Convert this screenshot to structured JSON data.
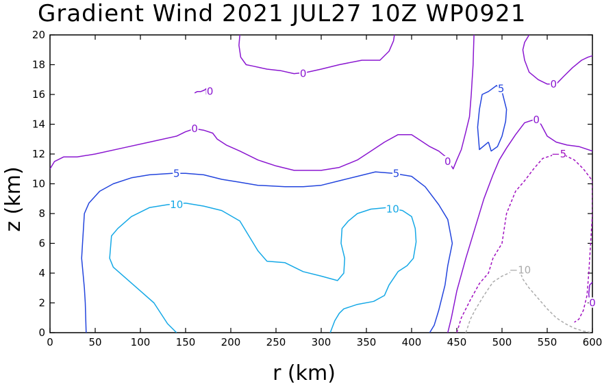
{
  "chart_data": {
    "type": "contour",
    "title": "Gradient Wind 2021 JUL27 10Z  WP0921",
    "xlabel": "r (km)",
    "ylabel": "z (km)",
    "xlim": [
      0,
      600
    ],
    "ylim": [
      0,
      20
    ],
    "xticks": [
      "0",
      "50",
      "100",
      "150",
      "200",
      "250",
      "300",
      "350",
      "400",
      "450",
      "500",
      "550",
      "600"
    ],
    "yticks": [
      "0",
      "2",
      "4",
      "6",
      "8",
      "10",
      "12",
      "14",
      "16",
      "18",
      "20"
    ],
    "grid": false,
    "colors": {
      "c0": "#8a16d0",
      "c5": "#2244dd",
      "c10": "#14a8e6",
      "cneg5": "#a010c0",
      "cneg10": "#aaaaaa"
    },
    "contours": [
      {
        "id": "c0-top",
        "level": "0",
        "color": "c0",
        "dashed": false,
        "points": [
          [
            210,
            20
          ],
          [
            209,
            19.3
          ],
          [
            211,
            18.5
          ],
          [
            217,
            18
          ],
          [
            225,
            17.9
          ],
          [
            240,
            17.7
          ],
          [
            255,
            17.6
          ],
          [
            270,
            17.4
          ],
          [
            285,
            17.5
          ],
          [
            300,
            17.7
          ],
          [
            320,
            18
          ],
          [
            345,
            18.3
          ],
          [
            365,
            18.3
          ],
          [
            375,
            18.9
          ],
          [
            380,
            19.6
          ],
          [
            381,
            20
          ]
        ]
      },
      {
        "id": "c0-main",
        "level": "0",
        "color": "c0",
        "dashed": false,
        "points": [
          [
            0,
            11
          ],
          [
            5,
            11.5
          ],
          [
            15,
            11.8
          ],
          [
            30,
            11.8
          ],
          [
            50,
            12
          ],
          [
            80,
            12.4
          ],
          [
            110,
            12.8
          ],
          [
            140,
            13.2
          ],
          [
            150,
            13.5
          ],
          [
            160,
            13.7
          ],
          [
            170,
            13.6
          ],
          [
            180,
            13.4
          ],
          [
            185,
            13
          ],
          [
            195,
            12.6
          ],
          [
            210,
            12.2
          ],
          [
            230,
            11.6
          ],
          [
            250,
            11.2
          ],
          [
            270,
            10.9
          ],
          [
            300,
            10.9
          ],
          [
            320,
            11.1
          ],
          [
            340,
            11.6
          ],
          [
            355,
            12.2
          ],
          [
            370,
            12.8
          ],
          [
            385,
            13.3
          ],
          [
            400,
            13.3
          ],
          [
            410,
            12.9
          ],
          [
            420,
            12.5
          ],
          [
            430,
            12.2
          ],
          [
            438,
            11.8
          ],
          [
            443,
            11.3
          ],
          [
            446,
            11
          ],
          [
            450,
            11.6
          ],
          [
            455,
            12.3
          ],
          [
            460,
            13.5
          ],
          [
            464,
            14.5
          ],
          [
            466,
            16
          ],
          [
            467,
            17
          ],
          [
            468,
            18
          ],
          [
            468.5,
            19
          ],
          [
            469,
            20
          ]
        ]
      },
      {
        "id": "c0-topright",
        "level": "0",
        "color": "c0",
        "dashed": false,
        "points": [
          [
            530,
            20
          ],
          [
            525,
            19.5
          ],
          [
            523,
            19
          ],
          [
            525,
            18.3
          ],
          [
            530,
            17.5
          ],
          [
            540,
            17
          ],
          [
            550,
            16.7
          ],
          [
            560,
            16.7
          ],
          [
            568,
            17.2
          ],
          [
            578,
            17.8
          ],
          [
            588,
            18.3
          ],
          [
            595,
            18.5
          ],
          [
            600,
            18.6
          ]
        ]
      },
      {
        "id": "c0-small",
        "level": "0",
        "color": "c0",
        "dashed": false,
        "points": [
          [
            160,
            16.1
          ],
          [
            163,
            16.2
          ],
          [
            167,
            16.2
          ],
          [
            171,
            16.3
          ],
          [
            173,
            16.4
          ],
          [
            173,
            16
          ]
        ]
      },
      {
        "id": "c0-rightdesc",
        "level": "0",
        "color": "c0",
        "dashed": false,
        "points": [
          [
            440,
            0
          ],
          [
            444,
            1
          ],
          [
            450,
            2.8
          ],
          [
            460,
            5
          ],
          [
            470,
            7
          ],
          [
            480,
            9
          ],
          [
            490,
            10.6
          ],
          [
            497,
            11.6
          ],
          [
            505,
            12.4
          ],
          [
            515,
            13.3
          ],
          [
            525,
            14.1
          ],
          [
            535,
            14.3
          ],
          [
            543,
            14
          ],
          [
            550,
            13.2
          ],
          [
            560,
            12.8
          ],
          [
            572,
            12.6
          ],
          [
            585,
            12.5
          ],
          [
            600,
            12.2
          ]
        ]
      },
      {
        "id": "c0-edge",
        "level": "0",
        "color": "c0",
        "dashed": false,
        "points": [
          [
            600,
            3.4
          ],
          [
            597,
            3.2
          ],
          [
            596,
            2.6
          ],
          [
            597,
            2
          ]
        ]
      },
      {
        "id": "c5-main",
        "level": "5",
        "color": "c5",
        "dashed": false,
        "points": [
          [
            40,
            0
          ],
          [
            39,
            2
          ],
          [
            38,
            3
          ],
          [
            35,
            5
          ],
          [
            36,
            6
          ],
          [
            38,
            8
          ],
          [
            43,
            8.7
          ],
          [
            55,
            9.5
          ],
          [
            70,
            10
          ],
          [
            90,
            10.4
          ],
          [
            110,
            10.6
          ],
          [
            135,
            10.7
          ],
          [
            150,
            10.7
          ],
          [
            170,
            10.6
          ],
          [
            190,
            10.3
          ],
          [
            210,
            10.1
          ],
          [
            230,
            9.9
          ],
          [
            260,
            9.8
          ],
          [
            280,
            9.8
          ],
          [
            300,
            9.9
          ],
          [
            320,
            10.2
          ],
          [
            340,
            10.5
          ],
          [
            360,
            10.8
          ],
          [
            380,
            10.7
          ],
          [
            400,
            10.5
          ],
          [
            415,
            9.8
          ],
          [
            430,
            8.6
          ],
          [
            440,
            7.6
          ],
          [
            445,
            6
          ],
          [
            440,
            4.5
          ],
          [
            437,
            3.2
          ],
          [
            430,
            1.5
          ],
          [
            425,
            0.5
          ],
          [
            420,
            0
          ]
        ]
      },
      {
        "id": "c5-island",
        "level": "5",
        "color": "c5",
        "dashed": false,
        "points": [
          [
            485,
            12.8
          ],
          [
            475,
            12.3
          ],
          [
            473,
            13.8
          ],
          [
            475,
            15
          ],
          [
            478,
            16
          ],
          [
            485,
            16.2
          ],
          [
            494,
            16.6
          ],
          [
            500,
            16.2
          ],
          [
            505,
            15
          ],
          [
            504,
            14.2
          ],
          [
            500,
            13.2
          ],
          [
            495,
            12.5
          ],
          [
            488,
            12.2
          ],
          [
            485,
            12.8
          ]
        ]
      },
      {
        "id": "c10-main",
        "level": "10",
        "color": "c10",
        "dashed": false,
        "points": [
          [
            140,
            0
          ],
          [
            130,
            0.6
          ],
          [
            115,
            2
          ],
          [
            100,
            2.8
          ],
          [
            85,
            3.6
          ],
          [
            70,
            4.4
          ],
          [
            66,
            5
          ],
          [
            68,
            6.5
          ],
          [
            75,
            7
          ],
          [
            90,
            7.8
          ],
          [
            110,
            8.4
          ],
          [
            130,
            8.6
          ],
          [
            150,
            8.7
          ],
          [
            170,
            8.5
          ],
          [
            190,
            8.2
          ],
          [
            210,
            7.5
          ],
          [
            220,
            6.5
          ],
          [
            230,
            5.5
          ],
          [
            240,
            4.8
          ],
          [
            260,
            4.7
          ],
          [
            280,
            4.1
          ],
          [
            300,
            3.8
          ],
          [
            318,
            3.5
          ],
          [
            325,
            4
          ],
          [
            326,
            5
          ],
          [
            322,
            6
          ],
          [
            323,
            7
          ],
          [
            330,
            7.5
          ],
          [
            340,
            8
          ],
          [
            355,
            8.3
          ],
          [
            373,
            8.4
          ],
          [
            390,
            8.2
          ],
          [
            400,
            7.8
          ],
          [
            404,
            7
          ],
          [
            405,
            6.1
          ],
          [
            402,
            5
          ],
          [
            395,
            4.5
          ],
          [
            385,
            4.1
          ],
          [
            375,
            3.2
          ],
          [
            370,
            2.5
          ],
          [
            358,
            2.1
          ],
          [
            340,
            1.9
          ],
          [
            325,
            1.6
          ],
          [
            320,
            1.3
          ],
          [
            315,
            0.8
          ],
          [
            310,
            0
          ]
        ]
      },
      {
        "id": "cneg5",
        "level": "-5",
        "color": "cneg5",
        "dashed": true,
        "points": [
          [
            450,
            0
          ],
          [
            455,
            1
          ],
          [
            465,
            2.2
          ],
          [
            475,
            3.3
          ],
          [
            485,
            4
          ],
          [
            490,
            5
          ],
          [
            500,
            6
          ],
          [
            505,
            8
          ],
          [
            515,
            9.5
          ],
          [
            525,
            10.2
          ],
          [
            535,
            11
          ],
          [
            545,
            11.7
          ],
          [
            560,
            12
          ],
          [
            570,
            11.9
          ],
          [
            580,
            11.6
          ],
          [
            590,
            11
          ],
          [
            600,
            10.2
          ],
          [
            600,
            8
          ],
          [
            598,
            6
          ],
          [
            596,
            4
          ],
          [
            594,
            2.5
          ],
          [
            590,
            1.5
          ],
          [
            585,
            0.9
          ],
          [
            580,
            0.7
          ]
        ]
      },
      {
        "id": "cneg10",
        "level": "-10",
        "color": "cneg10",
        "dashed": true,
        "points": [
          [
            460,
            0
          ],
          [
            465,
            0.9
          ],
          [
            470,
            1.5
          ],
          [
            480,
            2.5
          ],
          [
            490,
            3.4
          ],
          [
            500,
            3.8
          ],
          [
            515,
            4.2
          ],
          [
            520,
            4.1
          ],
          [
            523,
            3.6
          ],
          [
            530,
            3
          ],
          [
            540,
            2.3
          ],
          [
            550,
            1.6
          ],
          [
            560,
            1
          ],
          [
            570,
            0.6
          ],
          [
            580,
            0.3
          ],
          [
            590,
            0.1
          ],
          [
            600,
            0
          ]
        ]
      }
    ],
    "contour_labels": [
      {
        "text": "0",
        "x": 280,
        "y": 17.4,
        "color": "c0"
      },
      {
        "text": "0",
        "x": 177,
        "y": 16.2,
        "color": "c0"
      },
      {
        "text": "0",
        "x": 160,
        "y": 13.7,
        "color": "c0"
      },
      {
        "text": "0",
        "x": 440,
        "y": 11.5,
        "color": "c0"
      },
      {
        "text": "0",
        "x": 557,
        "y": 16.7,
        "color": "c0"
      },
      {
        "text": "0",
        "x": 538,
        "y": 14.3,
        "color": "c0"
      },
      {
        "text": "0",
        "x": 600,
        "y": 2,
        "color": "c0"
      },
      {
        "text": "5",
        "x": 140,
        "y": 10.7,
        "color": "c5"
      },
      {
        "text": "5",
        "x": 383,
        "y": 10.7,
        "color": "c5"
      },
      {
        "text": "5",
        "x": 499,
        "y": 16.4,
        "color": "c5"
      },
      {
        "text": "10",
        "x": 140,
        "y": 8.6,
        "color": "c10"
      },
      {
        "text": "10",
        "x": 379,
        "y": 8.3,
        "color": "c10"
      },
      {
        "text": "-5",
        "x": 563,
        "y": 12,
        "color": "cneg5"
      },
      {
        "text": "-10",
        "x": 520,
        "y": 4.2,
        "color": "cneg10"
      }
    ]
  }
}
